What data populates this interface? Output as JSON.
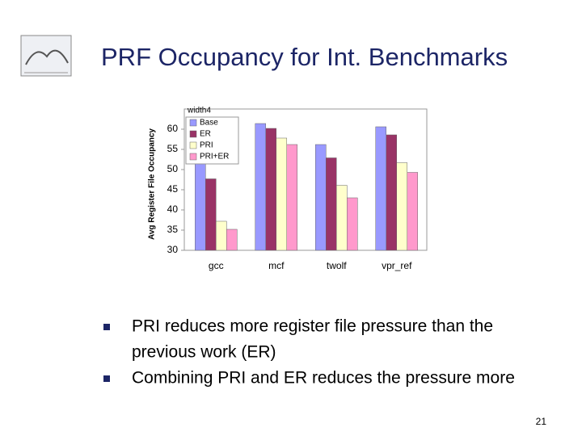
{
  "slide": {
    "title": "PRF Occupancy for Int. Benchmarks",
    "bullets": [
      [
        "PRI reduces more register file pressure than the",
        "previous work (ER)"
      ],
      [
        "Combining PRI and ER reduces the pressure more"
      ]
    ],
    "page_number": "21"
  },
  "chart_data": {
    "type": "bar",
    "y_label": "Avg Register File Occupancy",
    "legend_title": "width4",
    "legend": "top-left",
    "categories": [
      "gcc",
      "mcf",
      "twolf",
      "vpr_ref"
    ],
    "series": [
      {
        "name": "Base",
        "color": "#9999ff",
        "values": [
          51.5,
          61.4,
          56.2,
          60.6
        ]
      },
      {
        "name": "ER",
        "color": "#993366",
        "values": [
          47.7,
          60.2,
          52.9,
          58.6
        ]
      },
      {
        "name": "PRI",
        "color": "#ffffcc",
        "values": [
          37.2,
          57.8,
          46.1,
          51.7
        ]
      },
      {
        "name": "PRI+ER",
        "color": "#ff99cc",
        "values": [
          35.2,
          56.2,
          43.0,
          49.3
        ]
      }
    ],
    "ylim": [
      30,
      65
    ],
    "yticks": [
      30,
      35,
      40,
      45,
      50,
      55,
      60
    ],
    "grid": false
  }
}
